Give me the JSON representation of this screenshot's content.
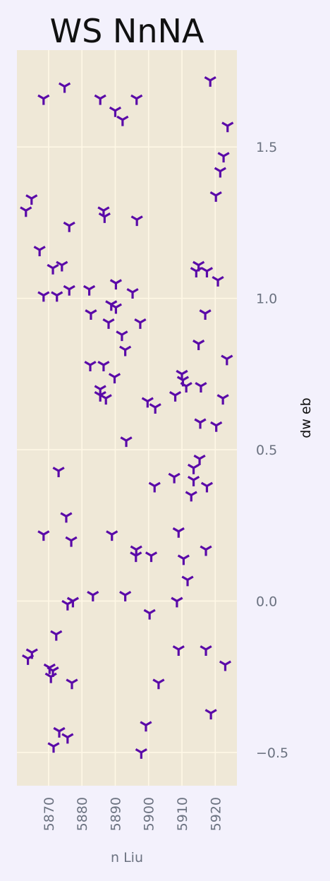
{
  "chart_data": {
    "type": "scatter",
    "title": "WS NnNA",
    "xlabel": "n Liu",
    "ylabel": "dw eb",
    "xlim": [
      5860.5,
      5926.5
    ],
    "ylim": [
      -0.61,
      1.82
    ],
    "x_ticks": [
      5870,
      5880,
      5890,
      5900,
      5910,
      5920
    ],
    "y_ticks": [
      -0.5,
      0.0,
      0.5,
      1.0,
      1.5
    ],
    "y_tick_labels": [
      "−0.5",
      "0.0",
      "0.5",
      "1.0",
      "1.5"
    ],
    "grid": true,
    "marker": "tri_down",
    "colors": {
      "plot_background": "#efe8d7",
      "figure_background": "#f3f1fc",
      "marker": "#5a0aa8",
      "grid": "#fff8e6"
    },
    "points": [
      {
        "x": 5868.5,
        "y": 1.66
      },
      {
        "x": 5874.8,
        "y": 1.7
      },
      {
        "x": 5885.5,
        "y": 1.66
      },
      {
        "x": 5890.0,
        "y": 1.62
      },
      {
        "x": 5892.2,
        "y": 1.59
      },
      {
        "x": 5896.4,
        "y": 1.66
      },
      {
        "x": 5918.5,
        "y": 1.72
      },
      {
        "x": 5923.7,
        "y": 1.57
      },
      {
        "x": 5922.5,
        "y": 1.47
      },
      {
        "x": 5921.5,
        "y": 1.42
      },
      {
        "x": 5920.2,
        "y": 1.34
      },
      {
        "x": 5864.9,
        "y": 1.33
      },
      {
        "x": 5863.2,
        "y": 1.29
      },
      {
        "x": 5886.5,
        "y": 1.29
      },
      {
        "x": 5886.8,
        "y": 1.27
      },
      {
        "x": 5896.5,
        "y": 1.26
      },
      {
        "x": 5876.2,
        "y": 1.24
      },
      {
        "x": 5867.3,
        "y": 1.16
      },
      {
        "x": 5871.3,
        "y": 1.1
      },
      {
        "x": 5874.0,
        "y": 1.11
      },
      {
        "x": 5914.3,
        "y": 1.09
      },
      {
        "x": 5915.0,
        "y": 1.11
      },
      {
        "x": 5917.5,
        "y": 1.09
      },
      {
        "x": 5920.8,
        "y": 1.06
      },
      {
        "x": 5868.5,
        "y": 1.01
      },
      {
        "x": 5872.5,
        "y": 1.01
      },
      {
        "x": 5876.2,
        "y": 1.03
      },
      {
        "x": 5882.2,
        "y": 1.03
      },
      {
        "x": 5890.2,
        "y": 1.05
      },
      {
        "x": 5895.2,
        "y": 1.02
      },
      {
        "x": 5882.7,
        "y": 0.95
      },
      {
        "x": 5888.8,
        "y": 0.98
      },
      {
        "x": 5890.2,
        "y": 0.97
      },
      {
        "x": 5888.0,
        "y": 0.92
      },
      {
        "x": 5897.5,
        "y": 0.92
      },
      {
        "x": 5892.0,
        "y": 0.88
      },
      {
        "x": 5917.0,
        "y": 0.95
      },
      {
        "x": 5915.0,
        "y": 0.85
      },
      {
        "x": 5893.0,
        "y": 0.83
      },
      {
        "x": 5923.5,
        "y": 0.8
      },
      {
        "x": 5882.5,
        "y": 0.78
      },
      {
        "x": 5886.5,
        "y": 0.78
      },
      {
        "x": 5889.8,
        "y": 0.74
      },
      {
        "x": 5910.0,
        "y": 0.75
      },
      {
        "x": 5910.3,
        "y": 0.73
      },
      {
        "x": 5911.3,
        "y": 0.71
      },
      {
        "x": 5915.7,
        "y": 0.71
      },
      {
        "x": 5885.5,
        "y": 0.7
      },
      {
        "x": 5885.5,
        "y": 0.68
      },
      {
        "x": 5887.2,
        "y": 0.67
      },
      {
        "x": 5908.0,
        "y": 0.68
      },
      {
        "x": 5922.3,
        "y": 0.67
      },
      {
        "x": 5899.7,
        "y": 0.66
      },
      {
        "x": 5902.0,
        "y": 0.64
      },
      {
        "x": 5915.5,
        "y": 0.59
      },
      {
        "x": 5920.3,
        "y": 0.58
      },
      {
        "x": 5893.3,
        "y": 0.53
      },
      {
        "x": 5915.3,
        "y": 0.47
      },
      {
        "x": 5873.0,
        "y": 0.43
      },
      {
        "x": 5913.5,
        "y": 0.44
      },
      {
        "x": 5907.7,
        "y": 0.41
      },
      {
        "x": 5913.5,
        "y": 0.4
      },
      {
        "x": 5901.8,
        "y": 0.38
      },
      {
        "x": 5917.5,
        "y": 0.38
      },
      {
        "x": 5912.8,
        "y": 0.35
      },
      {
        "x": 5875.3,
        "y": 0.28
      },
      {
        "x": 5868.5,
        "y": 0.22
      },
      {
        "x": 5876.8,
        "y": 0.2
      },
      {
        "x": 5889.0,
        "y": 0.22
      },
      {
        "x": 5909.0,
        "y": 0.23
      },
      {
        "x": 5896.3,
        "y": 0.17
      },
      {
        "x": 5917.2,
        "y": 0.17
      },
      {
        "x": 5896.2,
        "y": 0.15
      },
      {
        "x": 5900.8,
        "y": 0.15
      },
      {
        "x": 5910.5,
        "y": 0.14
      },
      {
        "x": 5911.7,
        "y": 0.07
      },
      {
        "x": 5883.3,
        "y": 0.02
      },
      {
        "x": 5893.0,
        "y": 0.02
      },
      {
        "x": 5877.3,
        "y": 0.0
      },
      {
        "x": 5875.7,
        "y": -0.01
      },
      {
        "x": 5908.5,
        "y": 0.0
      },
      {
        "x": 5900.3,
        "y": -0.04
      },
      {
        "x": 5872.3,
        "y": -0.11
      },
      {
        "x": 5865.0,
        "y": -0.17
      },
      {
        "x": 5863.8,
        "y": -0.19
      },
      {
        "x": 5909.0,
        "y": -0.16
      },
      {
        "x": 5917.2,
        "y": -0.16
      },
      {
        "x": 5870.3,
        "y": -0.22
      },
      {
        "x": 5871.3,
        "y": -0.23
      },
      {
        "x": 5870.7,
        "y": -0.25
      },
      {
        "x": 5923.0,
        "y": -0.21
      },
      {
        "x": 5877.0,
        "y": -0.27
      },
      {
        "x": 5903.0,
        "y": -0.27
      },
      {
        "x": 5918.7,
        "y": -0.37
      },
      {
        "x": 5899.2,
        "y": -0.41
      },
      {
        "x": 5873.2,
        "y": -0.43
      },
      {
        "x": 5875.7,
        "y": -0.45
      },
      {
        "x": 5871.5,
        "y": -0.48
      },
      {
        "x": 5897.8,
        "y": -0.5
      }
    ]
  }
}
